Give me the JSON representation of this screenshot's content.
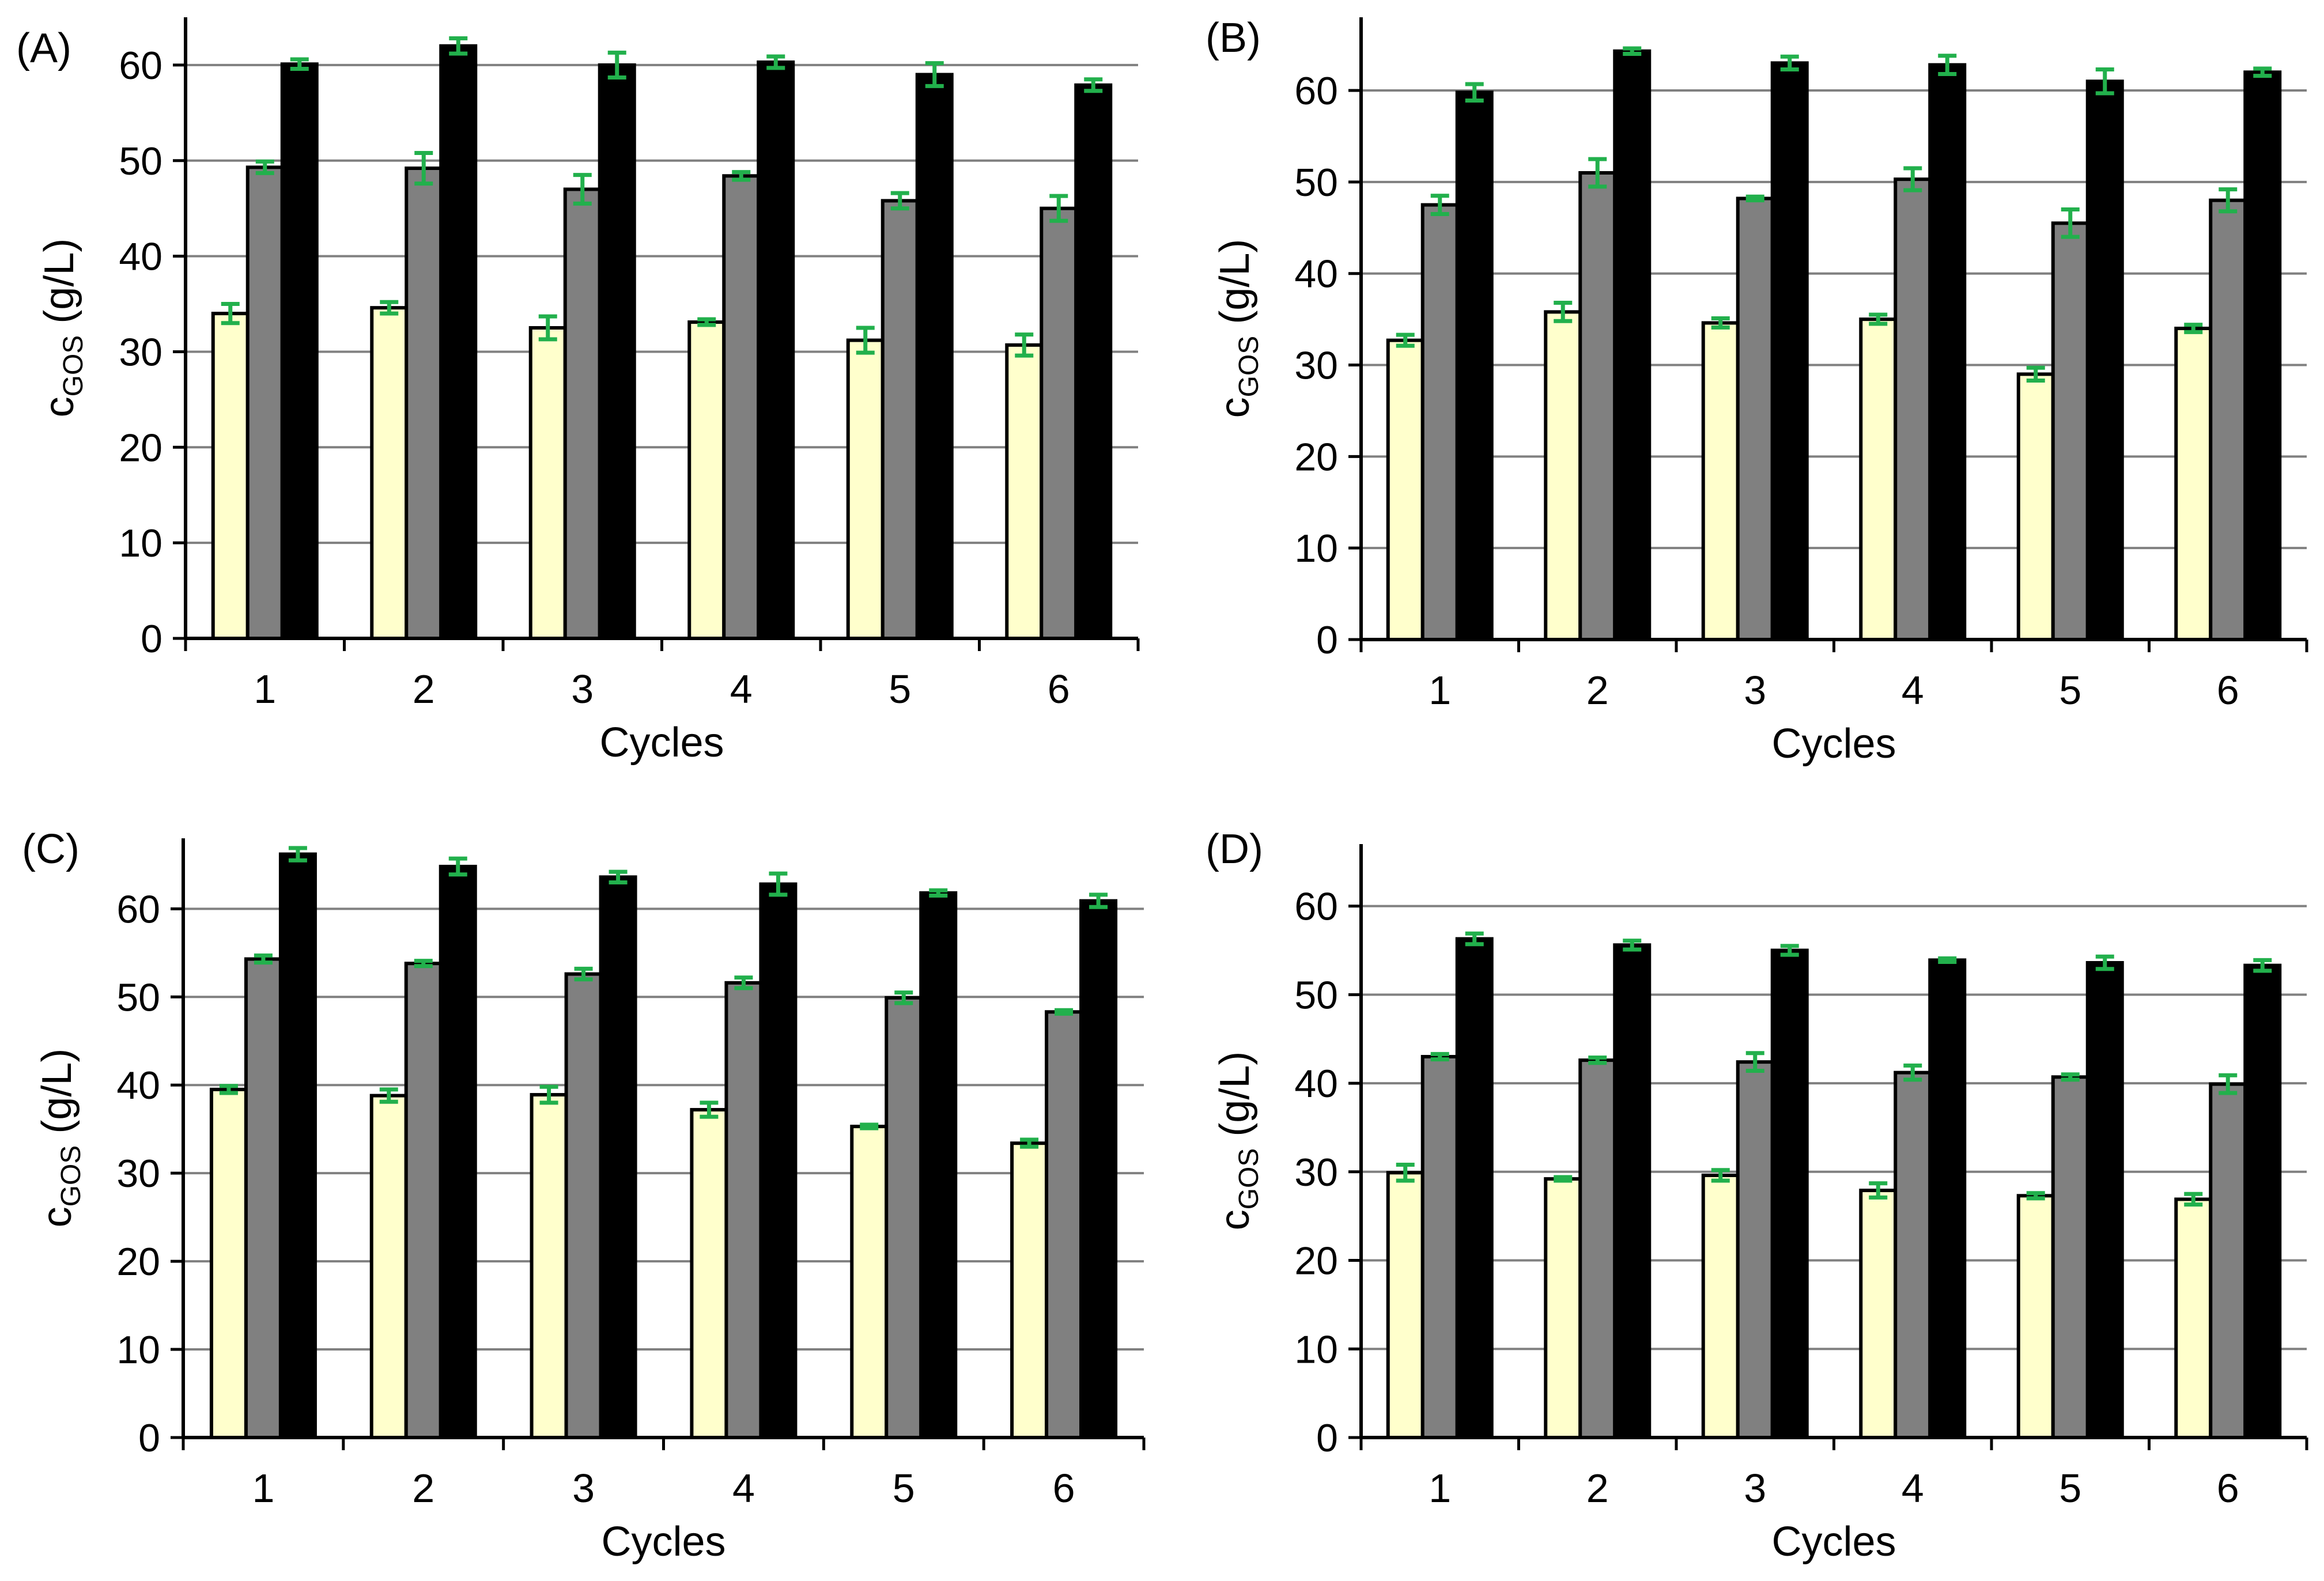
{
  "figure": {
    "colors": {
      "bar_series_1": "#ffffcc",
      "bar_series_2": "#808080",
      "bar_series_3": "#000000",
      "error_bar": "#22b04c",
      "gridline": "#808080",
      "axis": "#000000"
    }
  },
  "chart_data": [
    {
      "type": "bar",
      "panel_label": "(A)",
      "categories": [
        "1",
        "2",
        "3",
        "4",
        "5",
        "6"
      ],
      "xlabel": "Cycles",
      "ylabel": "c",
      "ylabel_subscript": "GOS",
      "ylabel_unit": " (g/L)",
      "ylim": [
        0,
        65
      ],
      "yticks": [
        0,
        10,
        20,
        30,
        40,
        50,
        60
      ],
      "grid": true,
      "series": [
        {
          "values": [
            34.0,
            34.6,
            32.5,
            33.1,
            31.2,
            30.7
          ],
          "errors": [
            1.0,
            0.6,
            1.2,
            0.3,
            1.3,
            1.1
          ]
        },
        {
          "values": [
            49.3,
            49.2,
            47.0,
            48.4,
            45.8,
            45.0
          ],
          "errors": [
            0.6,
            1.6,
            1.5,
            0.4,
            0.8,
            1.3
          ]
        },
        {
          "values": [
            60.1,
            62.0,
            60.0,
            60.3,
            59.0,
            57.9
          ],
          "errors": [
            0.5,
            0.8,
            1.3,
            0.6,
            1.2,
            0.6
          ]
        }
      ]
    },
    {
      "type": "bar",
      "panel_label": "(B)",
      "categories": [
        "1",
        "2",
        "3",
        "4",
        "5",
        "6"
      ],
      "xlabel": "Cycles",
      "ylabel": "c",
      "ylabel_subscript": "GOS",
      "ylabel_unit": " (g/L)",
      "ylim": [
        0,
        68
      ],
      "yticks": [
        0,
        10,
        20,
        30,
        40,
        50,
        60
      ],
      "grid": true,
      "series": [
        {
          "values": [
            32.7,
            35.8,
            34.6,
            35.0,
            29.0,
            34.0
          ],
          "errors": [
            0.6,
            1.0,
            0.5,
            0.5,
            0.7,
            0.4
          ]
        },
        {
          "values": [
            47.5,
            51.0,
            48.2,
            50.3,
            45.5,
            48.0
          ],
          "errors": [
            1.0,
            1.5,
            0.2,
            1.2,
            1.5,
            1.2
          ]
        },
        {
          "values": [
            59.8,
            64.3,
            63.0,
            62.8,
            61.0,
            62.0
          ],
          "errors": [
            0.9,
            0.3,
            0.7,
            1.0,
            1.3,
            0.4
          ]
        }
      ]
    },
    {
      "type": "bar",
      "panel_label": "(C)",
      "categories": [
        "1",
        "2",
        "3",
        "4",
        "5",
        "6"
      ],
      "xlabel": "Cycles",
      "ylabel": "c",
      "ylabel_subscript": "GOS",
      "ylabel_unit": " (g/L)",
      "ylim": [
        0,
        68
      ],
      "yticks": [
        0,
        10,
        20,
        30,
        40,
        50,
        60
      ],
      "grid": true,
      "series": [
        {
          "values": [
            39.5,
            38.8,
            38.9,
            37.2,
            35.3,
            33.4
          ],
          "errors": [
            0.4,
            0.7,
            0.9,
            0.8,
            0.2,
            0.4
          ]
        },
        {
          "values": [
            54.3,
            53.8,
            52.6,
            51.6,
            49.9,
            48.3
          ],
          "errors": [
            0.4,
            0.3,
            0.6,
            0.6,
            0.6,
            0.2
          ]
        },
        {
          "values": [
            66.2,
            64.8,
            63.6,
            62.8,
            61.8,
            60.9
          ],
          "errors": [
            0.7,
            0.9,
            0.6,
            1.2,
            0.3,
            0.7
          ]
        }
      ]
    },
    {
      "type": "bar",
      "panel_label": "(D)",
      "categories": [
        "1",
        "2",
        "3",
        "4",
        "5",
        "6"
      ],
      "xlabel": "Cycles",
      "ylabel": "c",
      "ylabel_subscript": "GOS",
      "ylabel_unit": " (g/L)",
      "ylim": [
        0,
        67
      ],
      "yticks": [
        0,
        10,
        20,
        30,
        40,
        50,
        60
      ],
      "grid": true,
      "series": [
        {
          "values": [
            29.9,
            29.2,
            29.6,
            27.9,
            27.3,
            26.9
          ],
          "errors": [
            0.9,
            0.2,
            0.6,
            0.8,
            0.3,
            0.6
          ]
        },
        {
          "values": [
            43.0,
            42.6,
            42.4,
            41.2,
            40.7,
            39.9
          ],
          "errors": [
            0.3,
            0.3,
            1.0,
            0.8,
            0.3,
            1.0
          ]
        },
        {
          "values": [
            56.3,
            55.6,
            55.0,
            53.9,
            53.6,
            53.3
          ],
          "errors": [
            0.6,
            0.5,
            0.5,
            0.2,
            0.7,
            0.6
          ]
        }
      ]
    }
  ]
}
